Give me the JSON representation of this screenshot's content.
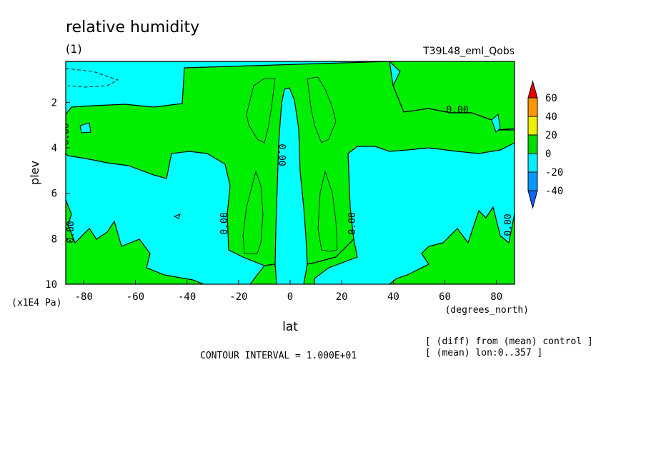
{
  "chart_data": {
    "type": "contour",
    "title": "relative humidity",
    "subtitle": "(1)",
    "experiment": "T39L48_eml_Qobs",
    "xlabel": "lat",
    "xunits": "(degrees_north)",
    "ylabel": "plev",
    "yunits": "(x1E4 Pa)",
    "xlim": [
      -87,
      87
    ],
    "ylim": [
      10,
      0.2
    ],
    "x_ticks": [
      -80,
      -60,
      -40,
      -20,
      0,
      20,
      40,
      60,
      80
    ],
    "x_tick_labels": [
      "-80",
      "-60",
      "-40",
      "-20",
      "0",
      "20",
      "40",
      "60",
      "80"
    ],
    "y_ticks": [
      2,
      4,
      6,
      8,
      10
    ],
    "y_tick_labels": [
      "2",
      "4",
      "6",
      "8",
      "10"
    ],
    "contour_interval_text": "CONTOUR INTERVAL = 1.000E+01",
    "notes": [
      "[ (diff) from (mean) control ]",
      "[ (mean) lon:0..357 ]"
    ],
    "contour_labels": [
      "0.00",
      "0.00",
      "0.00",
      "0.00",
      "0.00",
      "0.00",
      "0.00"
    ],
    "colorbar": {
      "labels": [
        "60",
        "40",
        "20",
        "0",
        "-20",
        "-40"
      ],
      "colors": [
        "#ee0000",
        "#ff9900",
        "#eeee00",
        "#00dd00",
        "#00eeff",
        "#0099ff",
        "#1166ff"
      ]
    },
    "fill_colors": {
      "negative": "#00ffff",
      "positive": "#00ee00"
    }
  }
}
